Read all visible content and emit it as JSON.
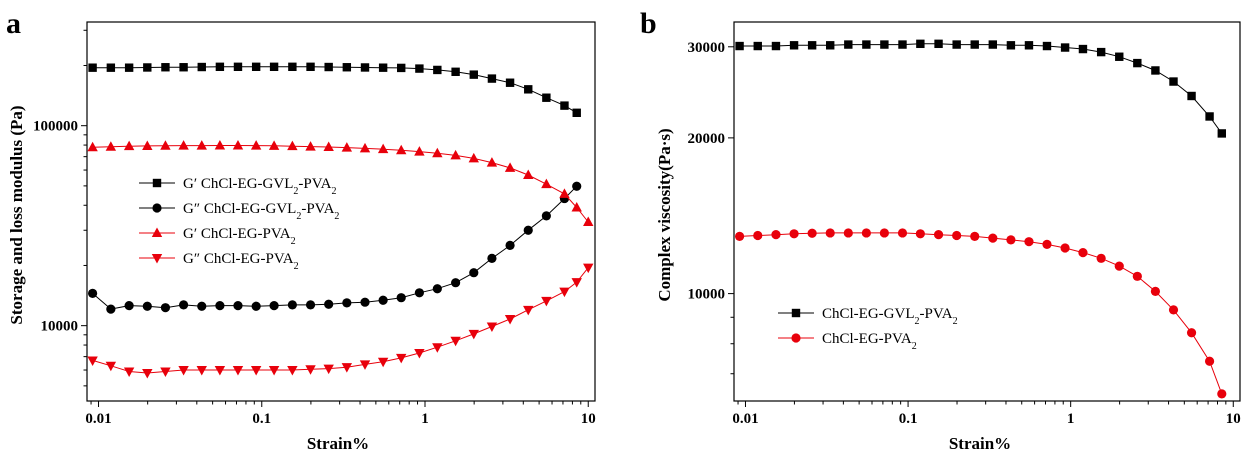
{
  "panels": [
    {
      "label": "a",
      "chart_data": {
        "type": "line",
        "xlabel": "Strain%",
        "ylabel": "Storage and loss modulus (Pa)",
        "xscale": "log",
        "yscale": "log",
        "xlim": [
          0.0085,
          11
        ],
        "ylim": [
          4200,
          330000
        ],
        "xticks": [
          0.01,
          0.1,
          1,
          10
        ],
        "xtick_labels": [
          "0.01",
          "0.1",
          "1",
          "10"
        ],
        "yticks": [
          10000,
          100000
        ],
        "ytick_labels": [
          "10000",
          "100000"
        ],
        "legend_position": "center-left",
        "series": [
          {
            "label_main": "G′ ChCl-EG-GVL",
            "label_sub1": "2",
            "label_mid": "-PVA",
            "label_sub2": "2",
            "color": "#000000",
            "marker": "square",
            "x": [
              0.0092,
              0.0119,
              0.0154,
              0.0199,
              0.0257,
              0.0332,
              0.0429,
              0.0554,
              0.0715,
              0.0924,
              0.119,
              0.154,
              0.199,
              0.257,
              0.332,
              0.429,
              0.554,
              0.715,
              0.924,
              1.19,
              1.54,
              1.99,
              2.57,
              3.32,
              4.29,
              5.54,
              7.15,
              8.5
            ],
            "y": [
              195000,
              195000,
              195000,
              195500,
              196000,
              196000,
              196500,
              197000,
              197000,
              197000,
              197000,
              197000,
              197000,
              196500,
              196000,
              195500,
              195000,
              194500,
              193000,
              190000,
              186000,
              180000,
              172000,
              164000,
              152000,
              138000,
              126000,
              116000
            ]
          },
          {
            "label_main": "G″ ChCl-EG-GVL",
            "label_sub1": "2",
            "label_mid": "-PVA",
            "label_sub2": "2",
            "color": "#000000",
            "marker": "circle",
            "x": [
              0.0092,
              0.0119,
              0.0154,
              0.0199,
              0.0257,
              0.0332,
              0.0429,
              0.0554,
              0.0715,
              0.0924,
              0.119,
              0.154,
              0.199,
              0.257,
              0.332,
              0.429,
              0.554,
              0.715,
              0.924,
              1.19,
              1.54,
              1.99,
              2.57,
              3.32,
              4.29,
              5.54,
              7.15,
              8.5
            ],
            "y": [
              14500,
              12100,
              12600,
              12500,
              12300,
              12700,
              12500,
              12600,
              12600,
              12500,
              12600,
              12700,
              12700,
              12800,
              13000,
              13100,
              13400,
              13800,
              14600,
              15300,
              16400,
              18400,
              21700,
              25200,
              30000,
              35400,
              43200,
              49800
            ]
          },
          {
            "label_main": "G′ ChCl-EG-PVA",
            "label_sub1": "",
            "label_mid": "",
            "label_sub2": "2",
            "color": "#e8000b",
            "marker": "triangle-up",
            "x": [
              0.0092,
              0.0119,
              0.0154,
              0.0199,
              0.0257,
              0.0332,
              0.0429,
              0.0554,
              0.0715,
              0.0924,
              0.119,
              0.154,
              0.199,
              0.257,
              0.332,
              0.429,
              0.554,
              0.715,
              0.924,
              1.19,
              1.54,
              1.99,
              2.57,
              3.32,
              4.29,
              5.54,
              7.15,
              8.5,
              10.0
            ],
            "y": [
              78000,
              78500,
              79000,
              79200,
              79400,
              79500,
              79500,
              79600,
              79600,
              79500,
              79300,
              79000,
              78600,
              78200,
              77700,
              77000,
              76300,
              75400,
              74200,
              72800,
              71000,
              68600,
              65400,
              61500,
              56700,
              51000,
              45600,
              39000,
              33000
            ]
          },
          {
            "label_main": "G″ ChCl-EG-PVA",
            "label_sub1": "",
            "label_mid": "",
            "label_sub2": "2",
            "color": "#e8000b",
            "marker": "triangle-down",
            "x": [
              0.0092,
              0.0119,
              0.0154,
              0.0199,
              0.0257,
              0.0332,
              0.0429,
              0.0554,
              0.0715,
              0.0924,
              0.119,
              0.154,
              0.199,
              0.257,
              0.332,
              0.429,
              0.554,
              0.715,
              0.924,
              1.19,
              1.54,
              1.99,
              2.57,
              3.32,
              4.29,
              5.54,
              7.15,
              8.5,
              10.0
            ],
            "y": [
              6700,
              6300,
              5900,
              5800,
              5900,
              6000,
              6000,
              6000,
              6000,
              6000,
              6000,
              6000,
              6050,
              6100,
              6200,
              6400,
              6600,
              6900,
              7300,
              7800,
              8400,
              9100,
              9900,
              10800,
              12000,
              13300,
              14800,
              16500,
              19500
            ]
          }
        ]
      }
    },
    {
      "label": "b",
      "chart_data": {
        "type": "line",
        "xlabel": "Strain%",
        "ylabel": "Complex viscosity(Pa·s)",
        "xscale": "log",
        "yscale": "log",
        "xlim": [
          0.0085,
          11
        ],
        "ylim": [
          6200,
          33500
        ],
        "xticks": [
          0.01,
          0.1,
          1,
          10
        ],
        "xtick_labels": [
          "0.01",
          "0.1",
          "1",
          "10"
        ],
        "yticks": [
          10000,
          20000,
          30000
        ],
        "ytick_labels": [
          "10000",
          "20000",
          "30000"
        ],
        "legend_position": "bottom-left",
        "series": [
          {
            "label_main": "ChCl-EG-GVL",
            "label_sub1": "2",
            "label_mid": "-PVA",
            "label_sub2": "2",
            "color": "#000000",
            "marker": "square",
            "x": [
              0.0092,
              0.0119,
              0.0154,
              0.0199,
              0.0257,
              0.0332,
              0.0429,
              0.0554,
              0.0715,
              0.0924,
              0.119,
              0.154,
              0.199,
              0.257,
              0.332,
              0.429,
              0.554,
              0.715,
              0.924,
              1.19,
              1.54,
              1.99,
              2.57,
              3.32,
              4.29,
              5.54,
              7.15,
              8.5
            ],
            "y": [
              30100,
              30100,
              30100,
              30200,
              30200,
              30200,
              30300,
              30300,
              30300,
              30300,
              30400,
              30400,
              30300,
              30300,
              30300,
              30200,
              30200,
              30100,
              29900,
              29700,
              29300,
              28700,
              27900,
              27000,
              25700,
              24100,
              22000,
              20400
            ]
          },
          {
            "label_main": "ChCl-EG-PVA",
            "label_sub1": "",
            "label_mid": "",
            "label_sub2": "2",
            "color": "#e8000b",
            "marker": "circle",
            "x": [
              0.0092,
              0.0119,
              0.0154,
              0.0199,
              0.0257,
              0.0332,
              0.0429,
              0.0554,
              0.0715,
              0.0924,
              0.119,
              0.154,
              0.199,
              0.257,
              0.332,
              0.429,
              0.554,
              0.715,
              0.924,
              1.19,
              1.54,
              1.99,
              2.57,
              3.32,
              4.29,
              5.54,
              7.15,
              8.5
            ],
            "y": [
              12900,
              12950,
              13000,
              13050,
              13080,
              13100,
              13100,
              13100,
              13100,
              13100,
              13050,
              13000,
              12950,
              12900,
              12800,
              12700,
              12600,
              12450,
              12250,
              12000,
              11700,
              11300,
              10800,
              10100,
              9300,
              8400,
              7400,
              6400
            ]
          }
        ]
      }
    }
  ]
}
